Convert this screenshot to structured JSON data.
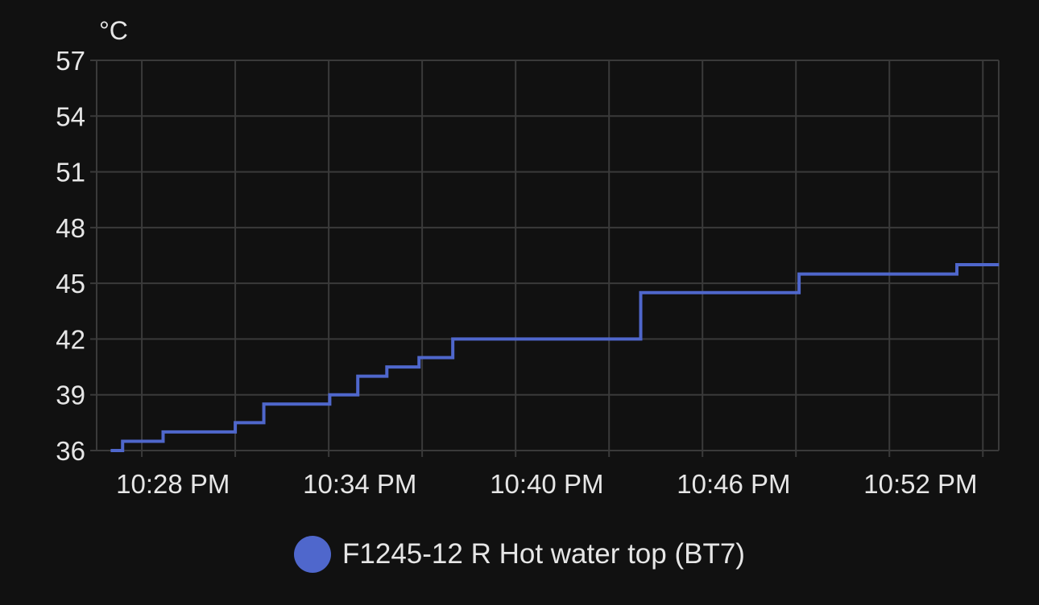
{
  "chart_data": {
    "type": "line",
    "step": true,
    "unit_label": "°C",
    "y_ticks": [
      36,
      39,
      42,
      45,
      48,
      51,
      54,
      57
    ],
    "ylim": [
      36,
      57
    ],
    "x_ticks": [
      "10:28 PM",
      "10:34 PM",
      "10:40 PM",
      "10:46 PM",
      "10:52 PM"
    ],
    "grid": true,
    "legend_position": "bottom",
    "series": [
      {
        "name": "F1245-12 R Hot water top (BT7)",
        "color": "#4f67cc",
        "points": [
          {
            "t": "10:26:00 PM",
            "y": 36.0
          },
          {
            "t": "10:26:23 PM",
            "y": 36.5
          },
          {
            "t": "10:27:41 PM",
            "y": 37.0
          },
          {
            "t": "10:30:00 PM",
            "y": 37.5
          },
          {
            "t": "10:30:55 PM",
            "y": 38.5
          },
          {
            "t": "10:33:02 PM",
            "y": 39.0
          },
          {
            "t": "10:33:56 PM",
            "y": 40.0
          },
          {
            "t": "10:34:52 PM",
            "y": 40.5
          },
          {
            "t": "10:35:54 PM",
            "y": 41.0
          },
          {
            "t": "10:36:59 PM",
            "y": 42.0
          },
          {
            "t": "10:43:01 PM",
            "y": 44.5
          },
          {
            "t": "10:48:06 PM",
            "y": 45.5
          },
          {
            "t": "10:53:10 PM",
            "y": 46.0
          },
          {
            "t": "10:54:31 PM",
            "y": 46.0
          }
        ]
      }
    ]
  }
}
